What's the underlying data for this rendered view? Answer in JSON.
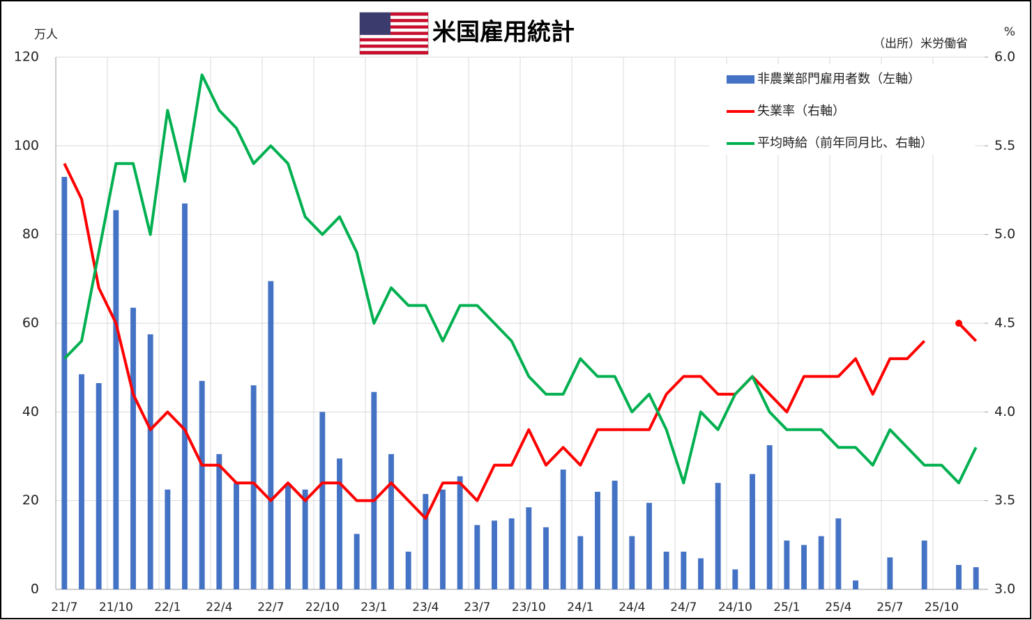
{
  "chart_data": {
    "type": "bar-line",
    "title": "米国雇用統計",
    "y_unit": "万人",
    "y2_unit": "%",
    "source": "（出所）米労働省",
    "categories": [
      "21/7",
      null,
      null,
      "21/10",
      null,
      null,
      "22/1",
      null,
      null,
      "22/4",
      null,
      null,
      "22/7",
      null,
      null,
      "22/10",
      null,
      null,
      "23/1",
      null,
      null,
      "23/4",
      null,
      null,
      "23/7",
      null,
      null,
      "23/10",
      null,
      null,
      "24/1",
      null,
      null,
      "24/4",
      null,
      null,
      "24/7",
      null,
      null,
      "24/10",
      null,
      null,
      "25/1",
      null,
      null,
      "25/4",
      null,
      null,
      "25/7",
      null,
      null,
      "25/10",
      null,
      null
    ],
    "series": [
      {
        "name": "非農業部門雇用者数（左軸）",
        "type": "bar",
        "color": "#4472c4",
        "axis": "y",
        "values": [
          93,
          48.5,
          46.5,
          85.5,
          63.5,
          57.5,
          22.5,
          87,
          47,
          30.5,
          24,
          46,
          69.5,
          23.5,
          22.5,
          40,
          29.5,
          12.5,
          44.5,
          30.5,
          8.5,
          21.5,
          22.5,
          25.5,
          14.5,
          15.5,
          16,
          18.5,
          14,
          27,
          12,
          22,
          24.5,
          12,
          19.5,
          8.5,
          8.5,
          7,
          24,
          4.5,
          26,
          32.5,
          11,
          10,
          12,
          16,
          2,
          0,
          7.2,
          0,
          11,
          null,
          5.5,
          5
        ]
      },
      {
        "name": "失業率（右軸）",
        "type": "line",
        "color": "#ff0000",
        "axis": "y2",
        "values": [
          5.4,
          5.2,
          4.7,
          4.5,
          4.1,
          3.9,
          4.0,
          3.9,
          3.7,
          3.7,
          3.6,
          3.6,
          3.5,
          3.6,
          3.5,
          3.6,
          3.6,
          3.5,
          3.5,
          3.6,
          3.5,
          3.4,
          3.6,
          3.6,
          3.5,
          3.7,
          3.7,
          3.9,
          3.7,
          3.8,
          3.7,
          3.9,
          3.9,
          3.9,
          3.9,
          4.1,
          4.2,
          4.2,
          4.1,
          4.1,
          4.2,
          4.1,
          4.0,
          4.2,
          4.2,
          4.2,
          4.3,
          4.1,
          4.3,
          4.3,
          4.4,
          null,
          4.5,
          4.4
        ]
      },
      {
        "name": "平均時給（前年同月比、右軸）",
        "type": "line",
        "color": "#00b050",
        "axis": "y2",
        "values": [
          4.3,
          4.4,
          4.9,
          5.4,
          5.4,
          5.0,
          5.7,
          5.3,
          5.9,
          5.7,
          5.6,
          5.4,
          5.5,
          5.4,
          5.1,
          5.0,
          5.1,
          4.9,
          4.5,
          4.7,
          4.6,
          4.6,
          4.4,
          4.6,
          4.6,
          4.5,
          4.4,
          4.2,
          4.1,
          4.1,
          4.3,
          4.2,
          4.2,
          4.0,
          4.1,
          3.9,
          3.6,
          4.0,
          3.9,
          4.1,
          4.2,
          4.0,
          3.9,
          3.9,
          3.9,
          3.8,
          3.8,
          3.7,
          3.9,
          3.8,
          3.7,
          3.7,
          3.6,
          3.8
        ]
      }
    ],
    "ylim": [
      0,
      120
    ],
    "yticks": [
      0,
      20,
      40,
      60,
      80,
      100,
      120
    ],
    "y2lim": [
      3,
      6
    ],
    "y2ticks": [
      {
        "value": 3,
        "label": "3.0"
      },
      3.5,
      {
        "value": 4,
        "label": "4.0"
      },
      4.5,
      {
        "value": 5,
        "label": "5.0"
      },
      5.5,
      {
        "value": 6,
        "label": "6.0"
      }
    ],
    "grid": true,
    "legend": "upper right"
  }
}
